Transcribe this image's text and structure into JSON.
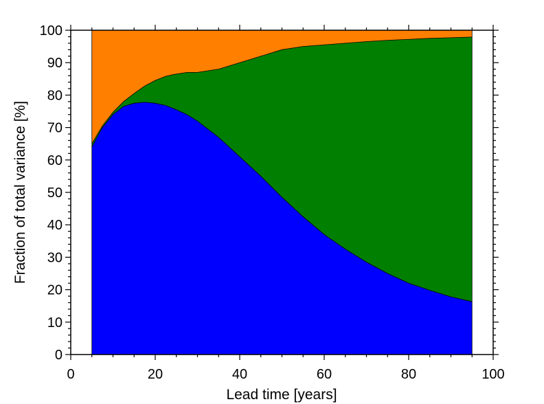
{
  "chart_data": {
    "type": "area",
    "stacked": true,
    "title": "",
    "xlabel": "Lead time  [years]",
    "ylabel": "Fraction of total variance  [%]",
    "xlim": [
      0,
      100
    ],
    "ylim": [
      0,
      100
    ],
    "xticks": [
      0,
      20,
      40,
      60,
      80,
      100
    ],
    "yticks": [
      0,
      10,
      20,
      30,
      40,
      50,
      60,
      70,
      80,
      90,
      100
    ],
    "grid": false,
    "legend": "none",
    "x": [
      5,
      7.5,
      10,
      12.5,
      15,
      17.5,
      20,
      22.5,
      25,
      27.5,
      30,
      35,
      40,
      45,
      50,
      55,
      60,
      65,
      70,
      75,
      80,
      85,
      90,
      95
    ],
    "series": [
      {
        "color": "#0000ff",
        "values": [
          64,
          70,
          74,
          76.5,
          77.5,
          77.8,
          77.5,
          76.8,
          75.5,
          74,
          72,
          67,
          61,
          55,
          48.5,
          42.5,
          37,
          32.5,
          28.5,
          25,
          22,
          19.8,
          17.8,
          16.3
        ]
      },
      {
        "color": "#007f00",
        "values": [
          1,
          0.5,
          0.7,
          1.5,
          3,
          5,
          7,
          9,
          11,
          13,
          15,
          21,
          29,
          37,
          45.5,
          52.5,
          58.5,
          63.5,
          68,
          71.9,
          75.2,
          77.7,
          79.9,
          81.6
        ]
      },
      {
        "color": "#ff7f00",
        "values": [
          35,
          29.5,
          25.3,
          22,
          19.5,
          17.2,
          15.5,
          14.2,
          13.5,
          13,
          13,
          12,
          10,
          8,
          6,
          5,
          4.5,
          4,
          3.5,
          3.1,
          2.8,
          2.5,
          2.3,
          2.1
        ]
      }
    ]
  }
}
